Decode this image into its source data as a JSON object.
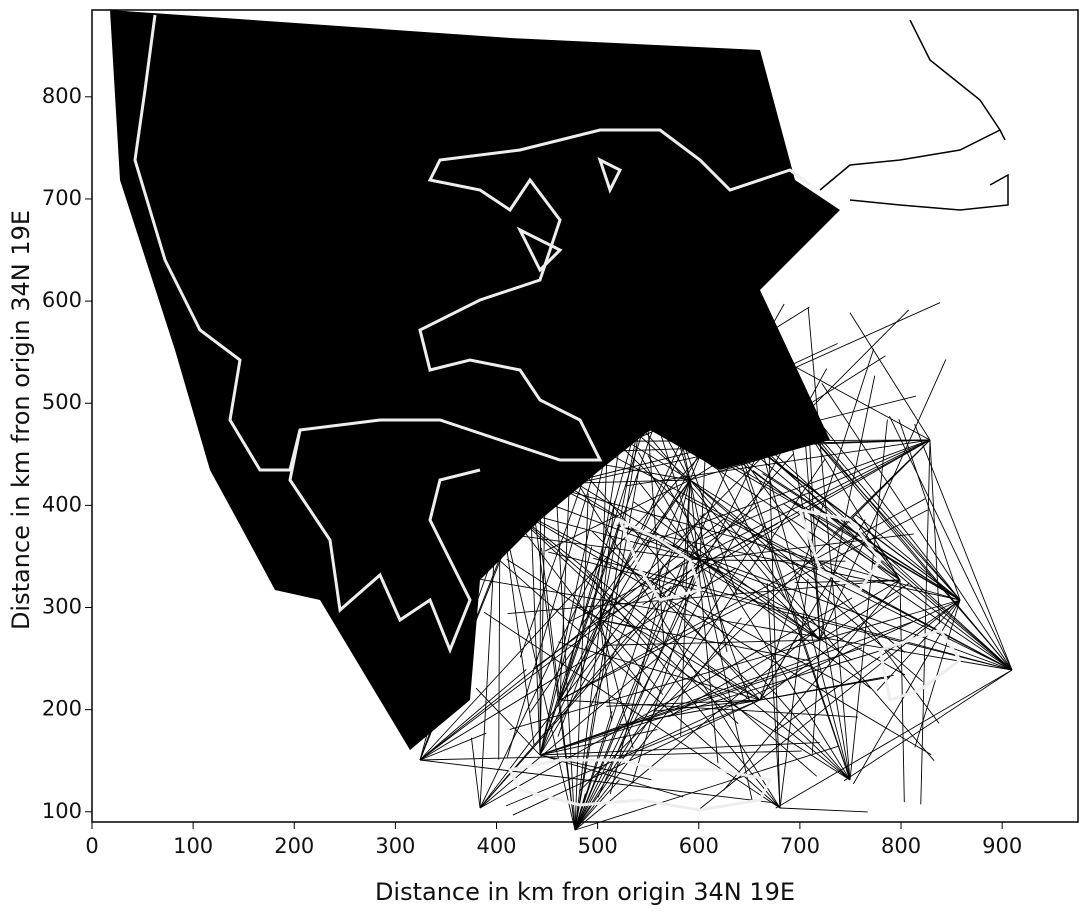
{
  "chart_data": {
    "type": "map",
    "xlabel": "Distance in km fron origin 34N 19E",
    "ylabel": "Distance in km fron origin 34N 19E",
    "xlim": [
      0,
      975
    ],
    "ylim": [
      90,
      885
    ],
    "xticks": [
      0,
      100,
      200,
      300,
      400,
      500,
      600,
      700,
      800,
      900
    ],
    "yticks": [
      100,
      200,
      300,
      400,
      500,
      600,
      700,
      800
    ]
  }
}
